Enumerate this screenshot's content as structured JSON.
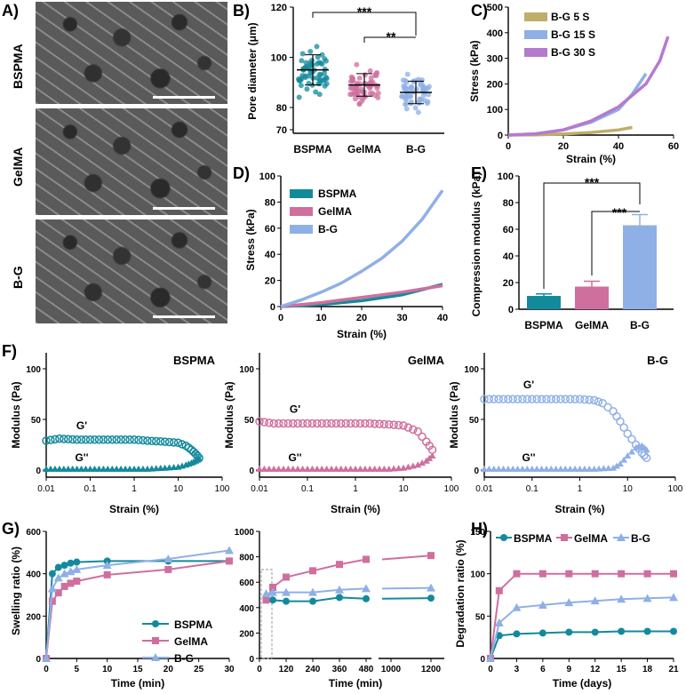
{
  "panel_labels": [
    "A)",
    "B)",
    "C)",
    "D)",
    "E)",
    "F)",
    "G)",
    "H)"
  ],
  "sem_labels": [
    "BSPMA",
    "GelMA",
    "B-G"
  ],
  "colors": {
    "bspma": "#138a9c",
    "gelma": "#cf6f9e",
    "bg": "#8fb0e6",
    "g5": "#bfae6a",
    "g15": "#8fb0e6",
    "g30": "#b57ad0"
  },
  "chart_data": [
    {
      "id": "B",
      "type": "scatter",
      "ylabel": "Pore diameter (μm)",
      "categories": [
        "BSPMA",
        "GelMA",
        "B-G"
      ],
      "yticks": [
        "70",
        "80",
        "100",
        "120"
      ],
      "mean": [
        95,
        89,
        86
      ],
      "sd": [
        6,
        4.5,
        4.5
      ],
      "significance": [
        "***",
        "**"
      ]
    },
    {
      "id": "C",
      "type": "line",
      "xlabel": "Strain (%)",
      "ylabel": "Stress (kPa)",
      "xlim": [
        0,
        60
      ],
      "ylim": [
        0,
        500
      ],
      "xticks": [
        "0",
        "20",
        "40",
        "60"
      ],
      "yticks": [
        "0",
        "100",
        "200",
        "300",
        "400",
        "500"
      ],
      "series": [
        {
          "name": "B-G 5 S",
          "x": [
            0,
            10,
            20,
            30,
            40,
            45
          ],
          "y": [
            0,
            1,
            4,
            10,
            20,
            30
          ]
        },
        {
          "name": "B-G 15 S",
          "x": [
            0,
            10,
            20,
            30,
            40,
            45,
            50
          ],
          "y": [
            0,
            5,
            20,
            50,
            100,
            160,
            240
          ]
        },
        {
          "name": "B-G 30 S",
          "x": [
            0,
            10,
            20,
            30,
            40,
            50,
            55,
            58
          ],
          "y": [
            0,
            5,
            20,
            55,
            110,
            200,
            290,
            385
          ]
        }
      ]
    },
    {
      "id": "D",
      "type": "line",
      "xlabel": "Strain (%)",
      "ylabel": "Stress (kPa)",
      "xlim": [
        0,
        40
      ],
      "ylim": [
        0,
        100
      ],
      "xticks": [
        "0",
        "10",
        "20",
        "30",
        "40"
      ],
      "yticks": [
        "0",
        "20",
        "40",
        "60",
        "80",
        "100"
      ],
      "series": [
        {
          "name": "BSPMA",
          "x": [
            0,
            10,
            20,
            30,
            40
          ],
          "y": [
            0,
            1.5,
            4.5,
            9,
            17
          ]
        },
        {
          "name": "GelMA",
          "x": [
            0,
            10,
            20,
            30,
            40
          ],
          "y": [
            0,
            3,
            7,
            11,
            16
          ]
        },
        {
          "name": "B-G",
          "x": [
            0,
            5,
            10,
            15,
            20,
            25,
            30,
            35,
            40
          ],
          "y": [
            0,
            5,
            11,
            18,
            27,
            37,
            50,
            67,
            89
          ]
        }
      ]
    },
    {
      "id": "E",
      "type": "bar",
      "ylabel": "Compression modulus (kPa)",
      "categories": [
        "BSPMA",
        "GelMA",
        "B-G"
      ],
      "values": [
        10,
        17,
        63
      ],
      "errors": [
        1.5,
        4,
        8
      ],
      "ylim": [
        0,
        100
      ],
      "yticks": [
        "0",
        "20",
        "40",
        "60",
        "80",
        "100"
      ],
      "significance": [
        "***",
        "***"
      ]
    },
    {
      "id": "F1",
      "type": "scatter",
      "title": "BSPMA",
      "xlabel": "Strain (%)",
      "ylabel": "Modulus (Pa)",
      "xticks": [
        "0.01",
        "0.1",
        "1",
        "10",
        "100"
      ],
      "yticks": [
        "0",
        "50",
        "100"
      ],
      "ylim": [
        0,
        100
      ],
      "labels": [
        "G'",
        "G''"
      ],
      "gp": {
        "x": [
          0.01,
          0.02,
          0.05,
          0.1,
          0.2,
          0.5,
          1,
          2,
          5,
          10,
          15,
          20,
          25,
          30
        ],
        "y": [
          29,
          31,
          30,
          30,
          30,
          30,
          30,
          29,
          28,
          27,
          24,
          20,
          16,
          12
        ]
      },
      "gpp": {
        "x": [
          0.01,
          0.02,
          0.05,
          0.1,
          0.2,
          0.5,
          1,
          2,
          5,
          10,
          15,
          20,
          25,
          30
        ],
        "y": [
          1,
          1,
          1,
          1,
          1,
          1,
          1,
          1,
          2,
          3,
          5,
          7,
          9,
          11
        ]
      }
    },
    {
      "id": "F2",
      "type": "scatter",
      "title": "GelMA",
      "xlabel": "Strain (%)",
      "ylabel": "Modulus (Pa)",
      "xticks": [
        "0.01",
        "0.1",
        "1",
        "10",
        "100"
      ],
      "yticks": [
        "0",
        "50",
        "100"
      ],
      "ylim": [
        0,
        100
      ],
      "labels": [
        "G'",
        "G''"
      ],
      "gp": {
        "x": [
          0.01,
          0.02,
          0.05,
          0.1,
          0.2,
          0.5,
          1,
          2,
          5,
          10,
          20,
          30,
          40
        ],
        "y": [
          48,
          46,
          46,
          46,
          46,
          46,
          46,
          46,
          45,
          44,
          38,
          28,
          20
        ]
      },
      "gpp": {
        "x": [
          0.01,
          0.02,
          0.05,
          0.1,
          0.2,
          0.5,
          1,
          2,
          5,
          10,
          20,
          30,
          40
        ],
        "y": [
          1,
          1,
          1,
          1,
          1,
          1,
          1,
          1,
          1,
          2,
          5,
          9,
          14
        ]
      }
    },
    {
      "id": "F3",
      "type": "scatter",
      "title": "B-G",
      "xlabel": "Strain (%)",
      "ylabel": "Modulus (Pa)",
      "xticks": [
        "0.01",
        "0.1",
        "1",
        "10",
        "100"
      ],
      "yticks": [
        "0",
        "50",
        "100"
      ],
      "ylim": [
        0,
        100
      ],
      "labels": [
        "G'",
        "G''"
      ],
      "gp": {
        "x": [
          0.01,
          0.02,
          0.05,
          0.1,
          0.2,
          0.5,
          1,
          2,
          3,
          5,
          7,
          10,
          15,
          20,
          25
        ],
        "y": [
          70,
          70,
          70,
          70,
          70,
          70,
          70,
          69,
          66,
          58,
          48,
          36,
          25,
          17,
          12
        ]
      },
      "gpp": {
        "x": [
          0.01,
          0.02,
          0.05,
          0.1,
          0.2,
          0.5,
          1,
          2,
          5,
          7,
          10,
          15,
          20,
          25
        ],
        "y": [
          1,
          1,
          1,
          1,
          1,
          1,
          1,
          1,
          2,
          6,
          14,
          22,
          24,
          20
        ]
      }
    },
    {
      "id": "G",
      "type": "line",
      "ylabel": "Swelling ratio (%)",
      "xlabel_left": "Time (min)",
      "xlabel_right": "Time (min)",
      "left": {
        "xlim": [
          0,
          30
        ],
        "xticks": [
          "0",
          "5",
          "10",
          "15",
          "20",
          "25",
          "30"
        ],
        "ylim": [
          0,
          600
        ],
        "yticks": [
          "0",
          "200",
          "400",
          "600"
        ]
      },
      "right": {
        "xticks": [
          "0",
          "120",
          "240",
          "360",
          "480",
          "1000",
          "1200"
        ],
        "yticks": [
          "0",
          "200",
          "400",
          "600",
          "800",
          "1000"
        ]
      },
      "series": [
        {
          "name": "BSPMA",
          "x": [
            0,
            1,
            2,
            3,
            4,
            5,
            10,
            20,
            30
          ],
          "y": [
            0,
            400,
            430,
            440,
            450,
            455,
            460,
            460,
            460
          ],
          "x2": [
            30,
            60,
            120,
            240,
            360,
            480,
            1200
          ],
          "y2": [
            460,
            460,
            450,
            450,
            480,
            470,
            475
          ]
        },
        {
          "name": "GelMA",
          "x": [
            0,
            1,
            2,
            3,
            4,
            5,
            10,
            20,
            30
          ],
          "y": [
            0,
            270,
            310,
            340,
            355,
            365,
            395,
            420,
            460
          ],
          "x2": [
            30,
            60,
            120,
            240,
            360,
            480,
            1200
          ],
          "y2": [
            460,
            560,
            640,
            690,
            740,
            780,
            810
          ]
        },
        {
          "name": "B-G",
          "x": [
            0,
            1,
            2,
            3,
            4,
            5,
            10,
            20,
            30
          ],
          "y": [
            0,
            330,
            380,
            400,
            410,
            420,
            440,
            470,
            510
          ],
          "x2": [
            30,
            60,
            120,
            240,
            360,
            480,
            1200
          ],
          "y2": [
            510,
            520,
            520,
            520,
            540,
            550,
            555
          ]
        }
      ]
    },
    {
      "id": "H",
      "type": "line",
      "xlabel": "Time (days)",
      "ylabel": "Degradation ratio (%)",
      "xlim": [
        0,
        21
      ],
      "ylim": [
        0,
        150
      ],
      "xticks": [
        "0",
        "3",
        "6",
        "9",
        "12",
        "15",
        "18",
        "21"
      ],
      "yticks": [
        "0",
        "50",
        "100",
        "150"
      ],
      "series": [
        {
          "name": "BSPMA",
          "x": [
            0,
            1,
            3,
            6,
            9,
            12,
            15,
            18,
            21
          ],
          "y": [
            0,
            27,
            29,
            30,
            31,
            31,
            32,
            32,
            32
          ]
        },
        {
          "name": "GelMA",
          "x": [
            0,
            1,
            3,
            6,
            9,
            12,
            15,
            18,
            21
          ],
          "y": [
            0,
            80,
            100,
            100,
            100,
            100,
            100,
            100,
            100
          ]
        },
        {
          "name": "B-G",
          "x": [
            0,
            1,
            3,
            6,
            9,
            12,
            15,
            18,
            21
          ],
          "y": [
            0,
            42,
            60,
            63,
            66,
            68,
            70,
            71,
            72
          ]
        }
      ]
    }
  ]
}
